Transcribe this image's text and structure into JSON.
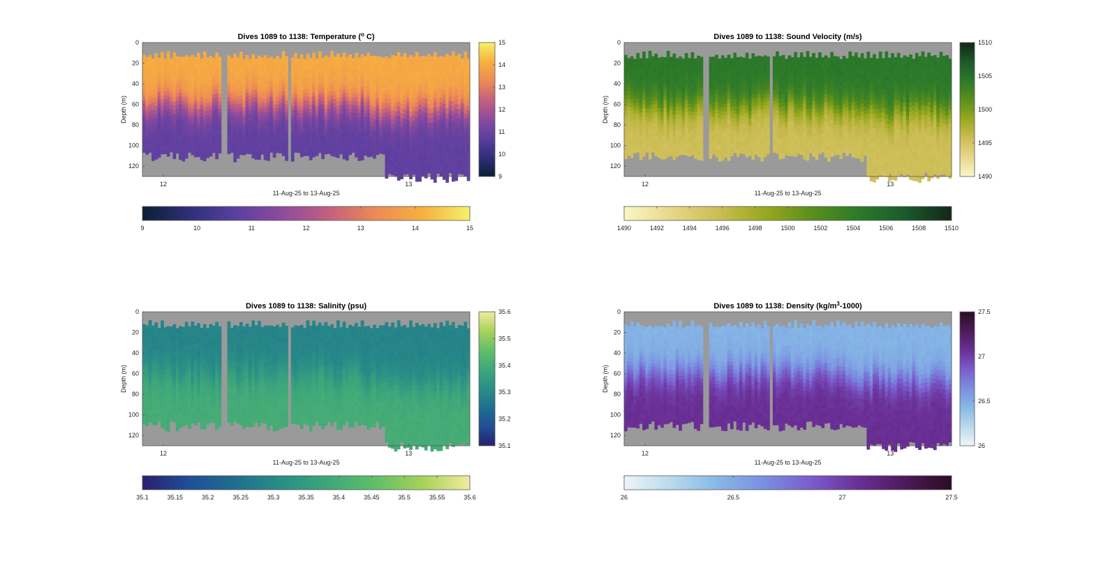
{
  "figure": {
    "time_range_label": "11-Aug-25 to 13-Aug-25",
    "depth_label": "Depth (m)",
    "gap_color": "#9a9a9a",
    "x_ticks": [
      "12",
      "13"
    ],
    "depth_ticks": [
      "0",
      "20",
      "40",
      "60",
      "80",
      "100",
      "120"
    ]
  },
  "chart_data": [
    {
      "type": "heatmap",
      "title_prefix": "Dives 1089 to 1138: Temperature (",
      "title_sup": "o",
      "title_suffix": " C)",
      "variable": "Temperature",
      "xlabel": "11-Aug-25 to 13-Aug-25",
      "ylabel": "Depth (m)",
      "ylim": [
        0,
        130
      ],
      "x_ticks": [
        "12",
        "13"
      ],
      "clim": [
        9,
        15
      ],
      "side_colorbar_ticks": [
        "9",
        "10",
        "11",
        "12",
        "13",
        "14",
        "15"
      ],
      "bottom_colorbar_ticks": [
        "9",
        "10",
        "11",
        "12",
        "13",
        "14",
        "15"
      ],
      "colormap": [
        "#0b1f33",
        "#2f2f7a",
        "#5b3fa0",
        "#8d4b9e",
        "#c4607e",
        "#ee8a55",
        "#f7b03f",
        "#f5f26a"
      ],
      "profile": {
        "surface_value": 14.0,
        "thermocline_depth_m": 60,
        "deep_value": 10.8
      }
    },
    {
      "type": "heatmap",
      "title_prefix": "Dives 1089 to 1138: Sound Velocity (m/s)",
      "title_sup": "",
      "title_suffix": "",
      "variable": "Sound Velocity",
      "xlabel": "11-Aug-25 to 13-Aug-25",
      "ylabel": "Depth (m)",
      "ylim": [
        0,
        130
      ],
      "x_ticks": [
        "12",
        "13"
      ],
      "clim": [
        1490,
        1510
      ],
      "side_colorbar_ticks": [
        "1490",
        "1495",
        "1500",
        "1505",
        "1510"
      ],
      "bottom_colorbar_ticks": [
        "1490",
        "1492",
        "1494",
        "1496",
        "1498",
        "1500",
        "1502",
        "1504",
        "1506",
        "1508",
        "1510"
      ],
      "colormap": [
        "#fbf6c6",
        "#e6d88a",
        "#cdbd56",
        "#9aa81e",
        "#5b8f1c",
        "#2c7a2a",
        "#1b5a2a",
        "#13261a"
      ],
      "profile": {
        "surface_value": 1504.5,
        "thermocline_depth_m": 62,
        "deep_value": 1495.5
      }
    },
    {
      "type": "heatmap",
      "title_prefix": "Dives 1089 to 1138: Salinity (psu)",
      "title_sup": "",
      "title_suffix": "",
      "variable": "Salinity",
      "xlabel": "11-Aug-25 to 13-Aug-25",
      "ylabel": "Depth (m)",
      "ylim": [
        0,
        130
      ],
      "x_ticks": [
        "12",
        "13"
      ],
      "clim": [
        35.1,
        35.6
      ],
      "side_colorbar_ticks": [
        "35.1",
        "35.2",
        "35.3",
        "35.4",
        "35.5",
        "35.6"
      ],
      "bottom_colorbar_ticks": [
        "35.1",
        "35.15",
        "35.2",
        "35.25",
        "35.3",
        "35.35",
        "35.4",
        "35.45",
        "35.5",
        "35.55",
        "35.6"
      ],
      "colormap": [
        "#2a1f6e",
        "#1f4f96",
        "#1f6f8e",
        "#2a8f86",
        "#3fa77a",
        "#62bf68",
        "#a8d25a",
        "#f2eba0"
      ],
      "profile": {
        "surface_value": 35.29,
        "thermocline_depth_m": 62,
        "deep_value": 35.4
      }
    },
    {
      "type": "heatmap",
      "title_prefix": "Dives 1089 to 1138: Density (kg/m",
      "title_sup": "3",
      "title_suffix": "-1000)",
      "variable": "Density",
      "xlabel": "11-Aug-25 to 13-Aug-25",
      "ylabel": "Depth (m)",
      "ylim": [
        0,
        130
      ],
      "x_ticks": [
        "12",
        "13"
      ],
      "clim": [
        26,
        27.5
      ],
      "side_colorbar_ticks": [
        "26",
        "26.5",
        "27",
        "27.5"
      ],
      "bottom_colorbar_ticks": [
        "26",
        "26.5",
        "27",
        "27.5"
      ],
      "colormap": [
        "#eef5f7",
        "#b9daec",
        "#86b8e6",
        "#7a8fe0",
        "#7a5ccc",
        "#6a2f96",
        "#4e1a5a",
        "#2a0c22"
      ],
      "profile": {
        "surface_value": 26.45,
        "thermocline_depth_m": 60,
        "deep_value": 27.08
      }
    }
  ]
}
